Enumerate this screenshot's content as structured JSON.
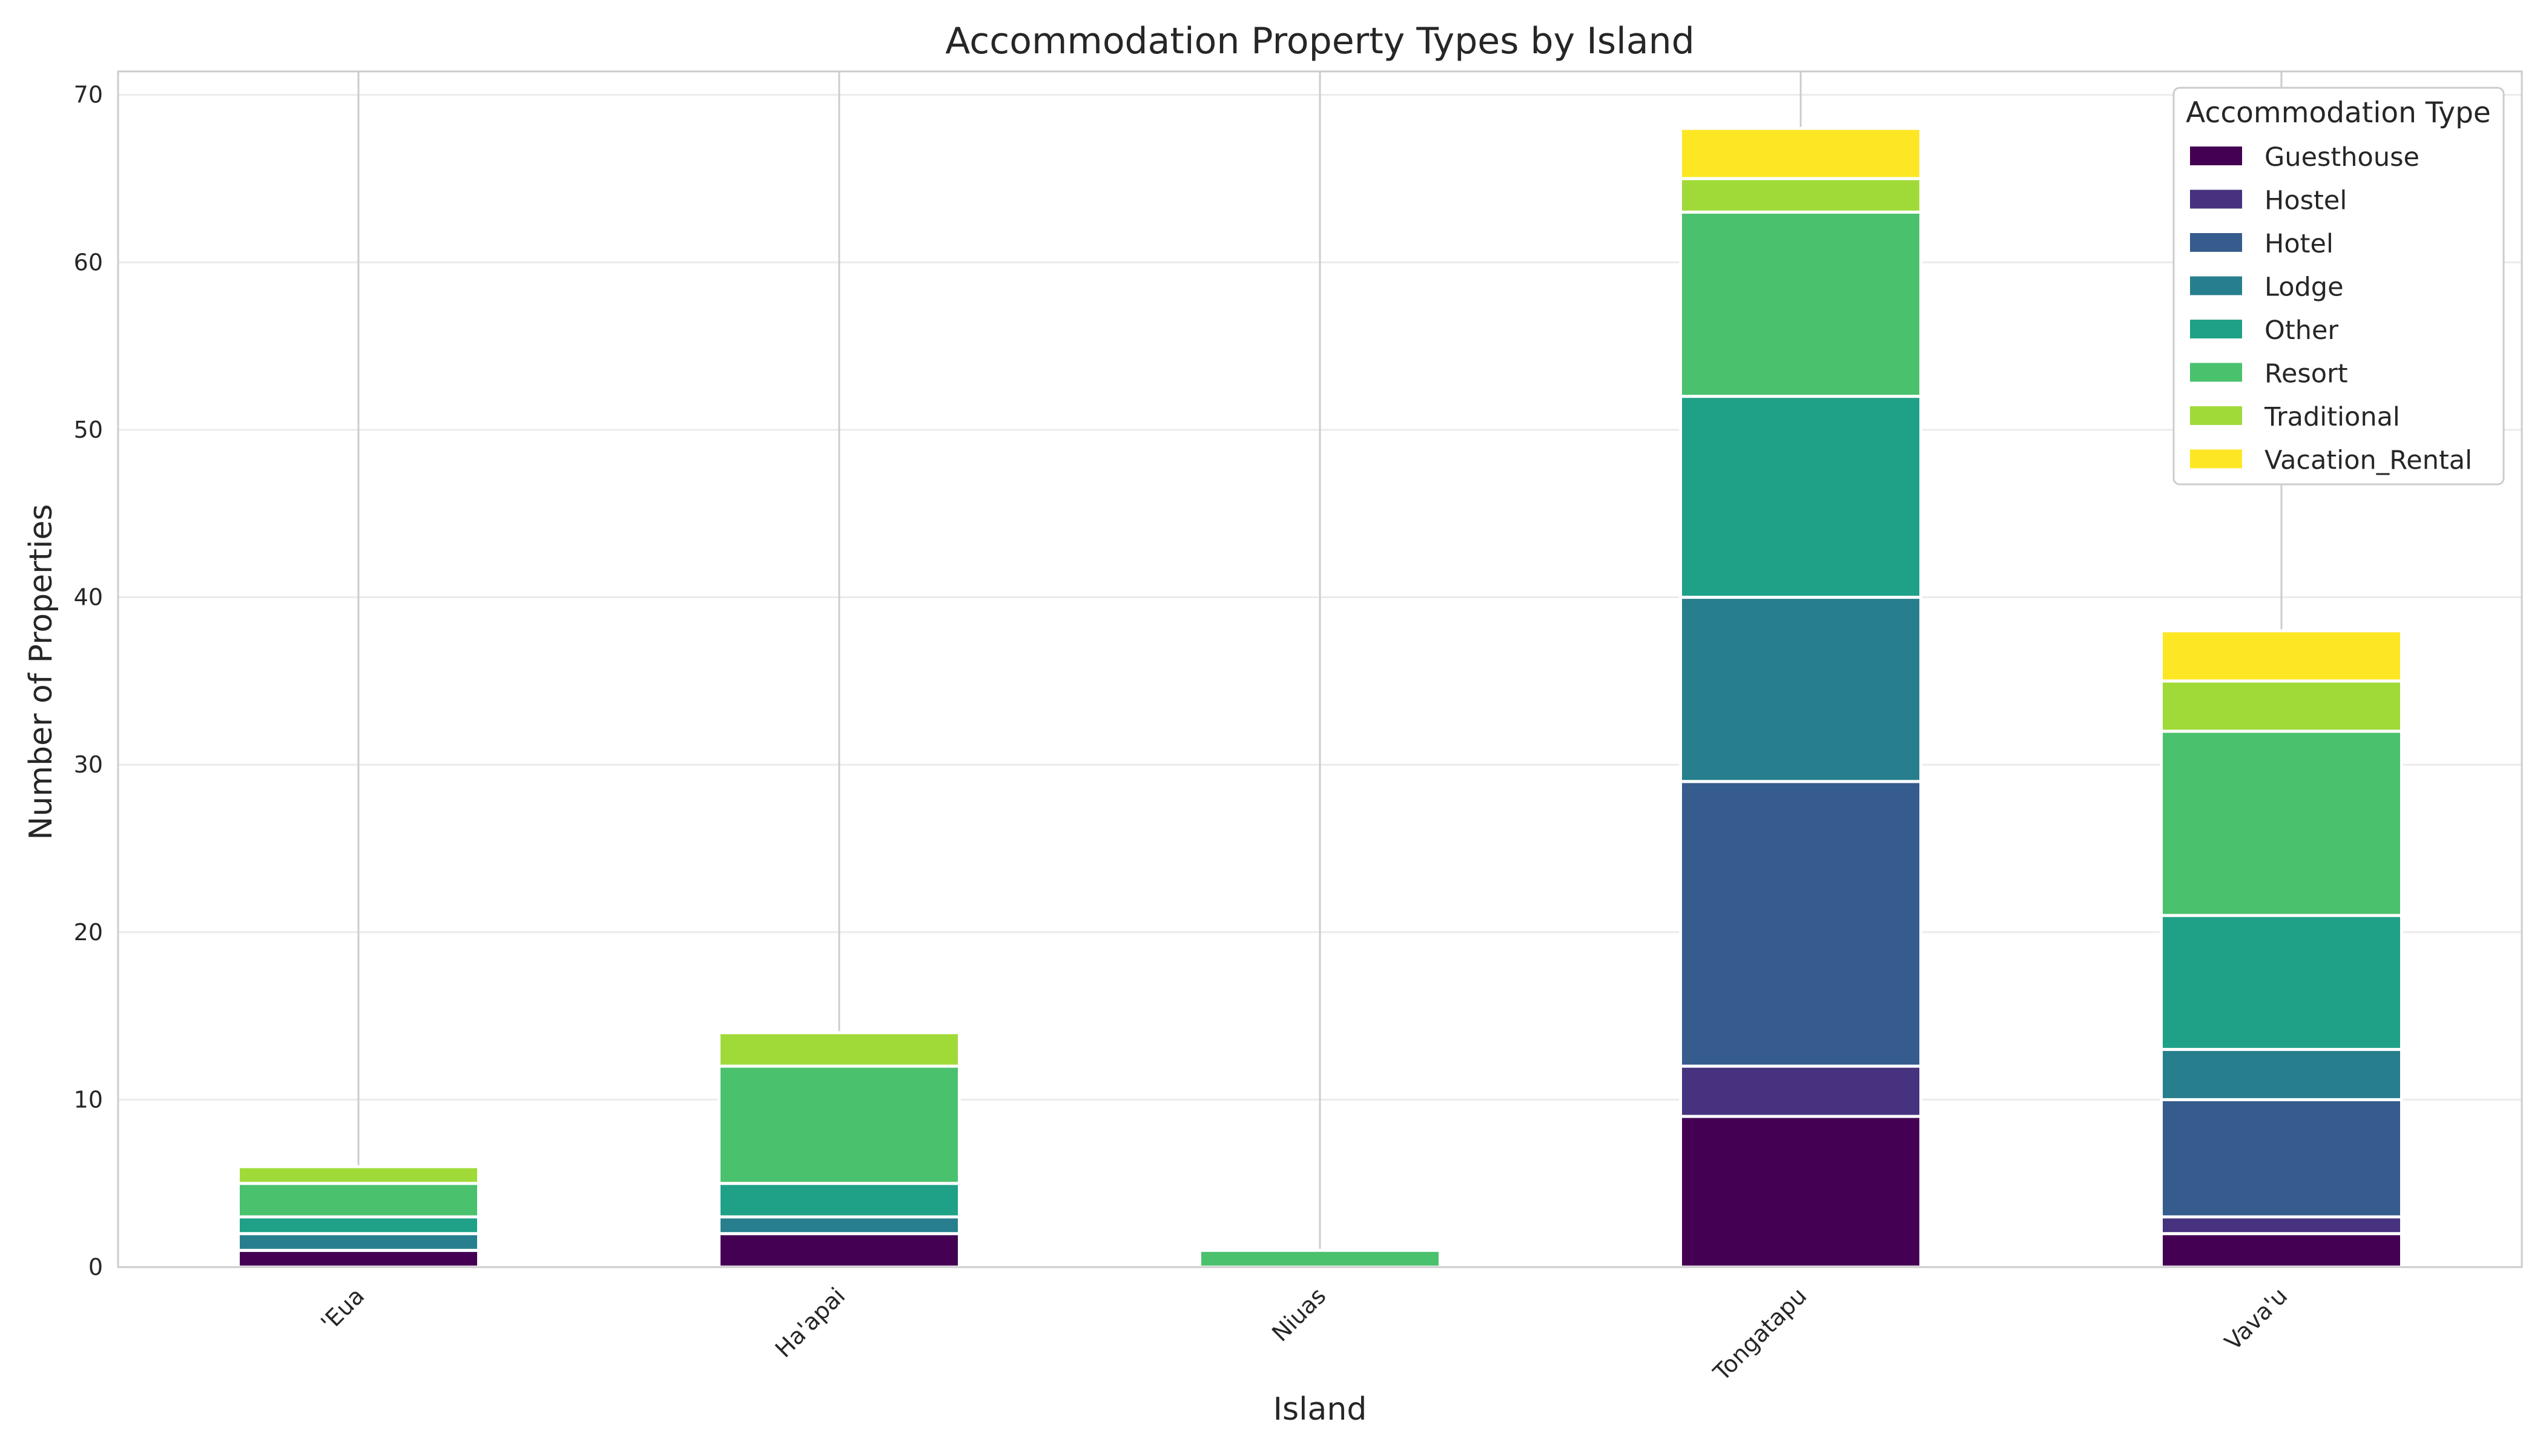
{
  "chart_data": {
    "type": "bar",
    "stacked": true,
    "title": "Accommodation Property Types by Island",
    "xlabel": "Island",
    "ylabel": "Number of Properties",
    "categories": [
      "'Eua",
      "Ha'apai",
      "Niuas",
      "Tongatapu",
      "Vava'u"
    ],
    "ylim": [
      0,
      71.4
    ],
    "yticks": [
      0,
      10,
      20,
      30,
      40,
      50,
      60,
      70
    ],
    "grid": true,
    "legend": {
      "title": "Accommodation Type",
      "placement": "top-right"
    },
    "series": [
      {
        "name": "Guesthouse",
        "color": "#440154",
        "values": [
          1,
          2,
          0,
          9,
          2
        ]
      },
      {
        "name": "Hostel",
        "color": "#46327e",
        "values": [
          0,
          0,
          0,
          3,
          1
        ]
      },
      {
        "name": "Hotel",
        "color": "#365c8d",
        "values": [
          0,
          0,
          0,
          17,
          7
        ]
      },
      {
        "name": "Lodge",
        "color": "#277f8e",
        "values": [
          1,
          1,
          0,
          11,
          3
        ]
      },
      {
        "name": "Other",
        "color": "#1fa187",
        "values": [
          1,
          2,
          0,
          12,
          8
        ]
      },
      {
        "name": "Resort",
        "color": "#4ac16d",
        "values": [
          2,
          7,
          1,
          11,
          11
        ]
      },
      {
        "name": "Traditional",
        "color": "#a0da39",
        "values": [
          1,
          2,
          0,
          2,
          3
        ]
      },
      {
        "name": "Vacation_Rental",
        "color": "#fde725",
        "values": [
          0,
          0,
          0,
          3,
          3
        ]
      }
    ]
  }
}
